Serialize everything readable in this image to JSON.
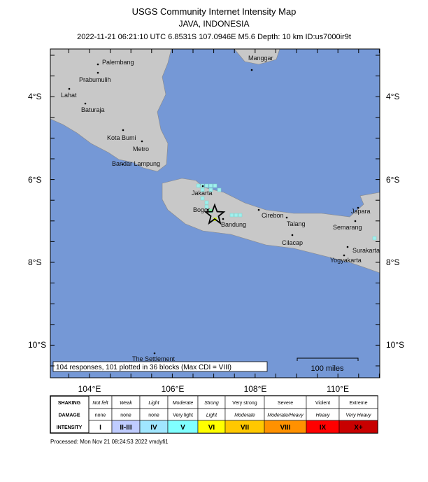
{
  "header": {
    "title": "USGS Community Internet Intensity Map",
    "region": "JAVA, INDONESIA",
    "details": "2022-11-21 06:21:10 UTC 6.8531S 107.0946E M5.6 Depth: 10 km ID:us7000ir9t"
  },
  "map": {
    "lat_labels": [
      "4°S",
      "6°S",
      "8°S",
      "10°S"
    ],
    "lon_labels": [
      "104°E",
      "106°E",
      "108°E",
      "110°E"
    ],
    "cities": [
      "Palembang",
      "Prabumulih",
      "Lahat",
      "Baturaja",
      "Kota Bumi",
      "Metro",
      "Bandar Lampung",
      "Manggar",
      "Jakarta",
      "Bogor",
      "Bandung",
      "Cirebon",
      "Talang",
      "Cilacap",
      "Japara",
      "Semarang",
      "Surakarta",
      "Yogyakarta",
      "The Settlement"
    ],
    "responses_note": "104 responses, 101 plotted in 36 blocks (Max CDI = VIII)",
    "scale_label": "100 miles"
  },
  "legend": {
    "row_labels": [
      "SHAKING",
      "DAMAGE",
      "INTENSITY"
    ],
    "shaking": [
      "Not felt",
      "Weak",
      "Light",
      "Moderate",
      "Strong",
      "Very strong",
      "Severe",
      "Violent",
      "Extreme"
    ],
    "damage": [
      "none",
      "none",
      "none",
      "Very light",
      "Light",
      "Moderate",
      "Moderate/Heavy",
      "Heavy",
      "Very Heavy"
    ],
    "intensity": [
      "I",
      "II-III",
      "IV",
      "V",
      "VI",
      "VII",
      "VIII",
      "IX",
      "X+"
    ],
    "intensity_colors": [
      "#ffffff",
      "#bfccff",
      "#a0e6ff",
      "#80ffff",
      "#ffff00",
      "#ffc800",
      "#ff9100",
      "#ff0000",
      "#c80000"
    ]
  },
  "footer": {
    "processed": "Processed: Mon Nov 21 08:24:53 2022 vmdyfi1"
  }
}
